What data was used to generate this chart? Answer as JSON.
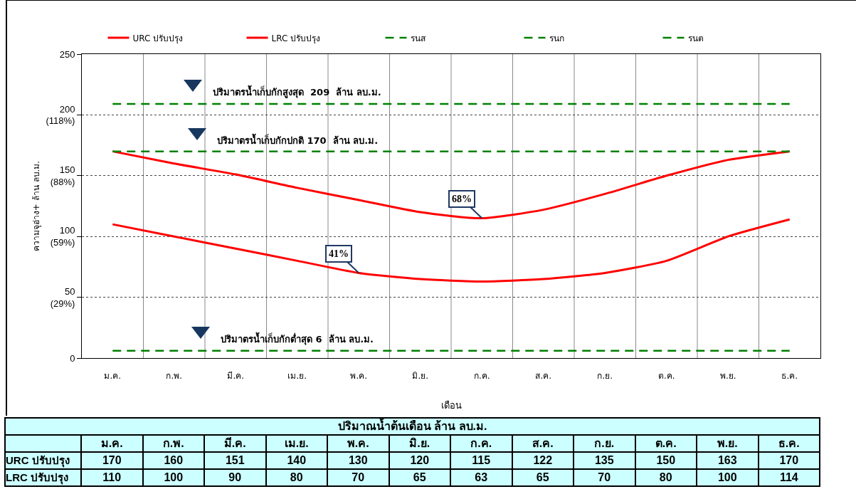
{
  "chart_data": {
    "type": "line",
    "xlabel": "เดือน",
    "ylabel": "ความจุอ่าง+ ล้าน ลบ.ม.",
    "categories": [
      "ม.ค.",
      "ก.พ.",
      "มี.ค.",
      "เม.ย.",
      "พ.ค.",
      "มิ.ย.",
      "ก.ค.",
      "ส.ค.",
      "ก.ย.",
      "ต.ค.",
      "พ.ย.",
      "ธ.ค."
    ],
    "series": [
      {
        "name": "URC ปรับปรุง",
        "color": "#ff0000",
        "values": [
          170,
          160,
          151,
          140,
          130,
          120,
          115,
          122,
          135,
          150,
          163,
          170
        ],
        "value_labels": [
          "170",
          "160",
          "151",
          "140",
          "130",
          "120",
          "115",
          "122",
          "135",
          "150",
          "163",
          "170"
        ]
      },
      {
        "name": "LRC ปรับปรุง",
        "color": "#ff0000",
        "values": [
          110,
          100,
          90,
          80,
          70,
          65,
          63,
          65,
          70,
          80,
          100,
          114
        ],
        "value_labels": [
          "110",
          "100",
          "90",
          "80",
          "70",
          "65",
          "63",
          "65",
          "70",
          "80",
          "100",
          "114"
        ]
      },
      {
        "name": "รนส",
        "color": "#008000",
        "line_style": "dashed",
        "values": [
          209,
          209,
          209,
          209,
          209,
          209,
          209,
          209,
          209,
          209,
          209,
          209
        ],
        "value_labels": [
          null,
          null,
          null,
          "ปริมาตรน้ำเก็บกักสูงสุด  209  ล้าน ลบ.ม.",
          null,
          null,
          null,
          null,
          null,
          null,
          null,
          null
        ]
      },
      {
        "name": "รนก",
        "color": "#008000",
        "line_style": "dashed",
        "values": [
          170,
          170,
          170,
          170,
          170,
          170,
          170,
          170,
          170,
          170,
          170,
          170
        ],
        "value_labels": [
          null,
          null,
          null,
          "ปริมาตรน้ำเก็บกักปกติ 170  ล้าน ลบ.ม.",
          null,
          null,
          null,
          null,
          null,
          null,
          null,
          null
        ]
      },
      {
        "name": "รนต",
        "color": "#008000",
        "line_style": "dashed",
        "values": [
          6,
          6,
          6,
          6,
          6,
          6,
          6,
          6,
          6,
          6,
          6,
          6
        ],
        "value_labels": [
          null,
          null,
          null,
          "ปริมาตรน้ำเก็บกักต่ำสุด 6  ล้าน ลบ.ม.",
          null,
          null,
          null,
          null,
          null,
          null,
          null,
          null
        ]
      }
    ],
    "ylim": [
      0,
      250
    ],
    "yticks": [
      0,
      {
        "value": 50,
        "label": "50\n(29%)"
      },
      {
        "value": 100,
        "label": "100\n(59%)"
      },
      {
        "value": 150,
        "label": "150\n(88%)"
      },
      {
        "value": 200,
        "label": "200\n(118%)"
      },
      250
    ],
    "grid": true,
    "legend": "top",
    "marker": "none",
    "annotations": [
      "ปริมาณน้ำต้นเดือน ล้าน ลบ.ม.",
      {
        "text": "68%",
        "x": "ก.ค.",
        "y": 115
      },
      {
        "text": "41%",
        "x": "พ.ค.",
        "y": 70
      }
    ]
  }
}
